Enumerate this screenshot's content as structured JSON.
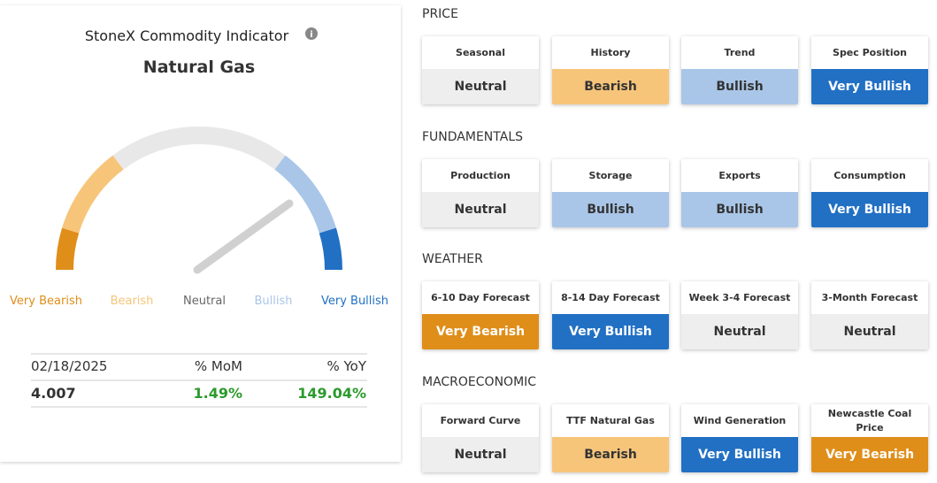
{
  "indicator": {
    "title": "StoneX Commodity Indicator",
    "commodity": "Natural Gas",
    "scale_labels": [
      "Very Bearish",
      "Bearish",
      "Neutral",
      "Bullish",
      "Very Bullish"
    ],
    "table": {
      "headers": [
        "02/18/2025",
        "% MoM",
        "% YoY"
      ],
      "values": [
        "4.007",
        "1.49%",
        "149.04%"
      ]
    }
  },
  "sections": [
    {
      "title": "PRICE",
      "cards": [
        {
          "label": "Seasonal",
          "status": "Neutral",
          "color": "#eeeeee"
        },
        {
          "label": "History",
          "status": "Bearish",
          "color": "#f7c57a"
        },
        {
          "label": "Trend",
          "status": "Bullish",
          "color": "#a9c6e8"
        },
        {
          "label": "Spec Position",
          "status": "Very Bullish",
          "color": "#2170c4"
        }
      ]
    },
    {
      "title": "FUNDAMENTALS",
      "cards": [
        {
          "label": "Production",
          "status": "Neutral",
          "color": "#eeeeee"
        },
        {
          "label": "Storage",
          "status": "Bullish",
          "color": "#a9c6e8"
        },
        {
          "label": "Exports",
          "status": "Bullish",
          "color": "#a9c6e8"
        },
        {
          "label": "Consumption",
          "status": "Very Bullish",
          "color": "#2170c4"
        }
      ]
    },
    {
      "title": "WEATHER",
      "cards": [
        {
          "label": "6-10 Day Forecast",
          "status": "Very Bearish",
          "color": "#df8e1a"
        },
        {
          "label": "8-14 Day Forecast",
          "status": "Very Bullish",
          "color": "#2170c4"
        },
        {
          "label": "Week 3-4 Forecast",
          "status": "Neutral",
          "color": "#eeeeee"
        },
        {
          "label": "3-Month Forecast",
          "status": "Neutral",
          "color": "#eeeeee"
        }
      ]
    },
    {
      "title": "MACROECONOMIC",
      "cards": [
        {
          "label": "Forward Curve",
          "status": "Neutral",
          "color": "#eeeeee"
        },
        {
          "label": "TTF Natural Gas",
          "status": "Bearish",
          "color": "#f7c57a"
        },
        {
          "label": "Wind Generation",
          "status": "Very Bullish",
          "color": "#2170c4"
        },
        {
          "label": "Newcastle Coal Price",
          "status": "Very Bearish",
          "color": "#df8e1a"
        }
      ]
    }
  ]
}
